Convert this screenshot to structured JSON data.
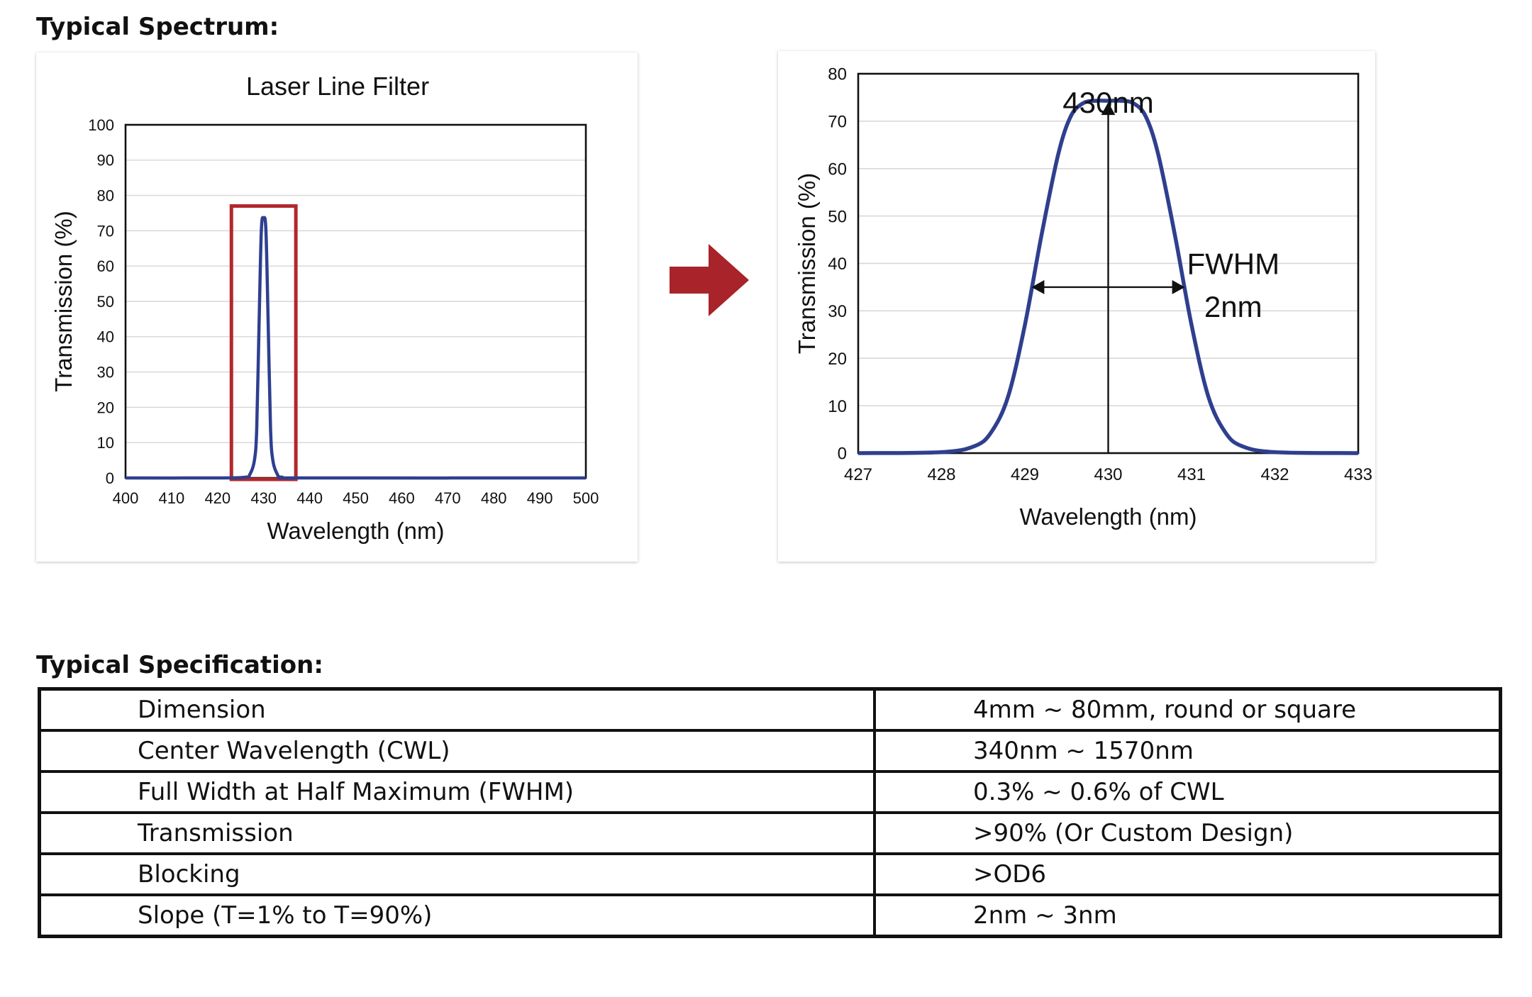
{
  "sections": {
    "spectrum_title": "Typical Spectrum:",
    "spec_title": "Typical Specification:"
  },
  "chart_data": [
    {
      "type": "line",
      "title": "Laser Line Filter",
      "xlabel": "Wavelength (nm)",
      "ylabel": "Transmission (%)",
      "xlim": [
        400,
        500
      ],
      "ylim": [
        0,
        100
      ],
      "xticks": [
        400,
        410,
        420,
        430,
        440,
        450,
        460,
        470,
        480,
        490,
        500
      ],
      "yticks": [
        0,
        10,
        20,
        30,
        40,
        50,
        60,
        70,
        80,
        90,
        100
      ],
      "grid": "horizontal",
      "line_color": "#2f3f8f",
      "highlight_color": "#b1282d",
      "highlight_box": {
        "x": [
          423,
          437
        ],
        "y": [
          0,
          77
        ]
      },
      "series": [
        {
          "x": [
            400,
            420,
            426,
            427,
            428,
            428.5,
            429,
            429.5,
            430,
            430.5,
            431,
            431.5,
            432,
            433,
            434,
            440,
            500
          ],
          "y": [
            0,
            0,
            0.2,
            1,
            5,
            14,
            43,
            70,
            73.5,
            70,
            43,
            14,
            5,
            1,
            0.2,
            0,
            0
          ]
        }
      ]
    },
    {
      "type": "line",
      "title": "",
      "xlabel": "Wavelength (nm)",
      "ylabel": "Transmission (%)",
      "xlim": [
        427,
        433
      ],
      "ylim": [
        0,
        80
      ],
      "xticks": [
        427,
        428,
        429,
        430,
        431,
        432,
        433
      ],
      "yticks": [
        0,
        10,
        20,
        30,
        40,
        50,
        60,
        70,
        80
      ],
      "grid": "horizontal",
      "line_color": "#2f3f8f",
      "annotations": [
        {
          "text": "430nm",
          "x": 430,
          "y": 74
        },
        {
          "text": "FWHM",
          "x": 431.5,
          "y": 40
        },
        {
          "text": "2nm",
          "x": 431.5,
          "y": 31
        }
      ],
      "peak_marker": {
        "x": 430,
        "y_from": 0,
        "y_to": 74
      },
      "fwhm_marker": {
        "x_from": 429.08,
        "x_to": 430.92,
        "y": 35
      },
      "series": [
        {
          "x": [
            427,
            428,
            428.4,
            428.6,
            428.8,
            429,
            429.2,
            429.4,
            429.55,
            429.7,
            429.85,
            430,
            430.15,
            430.3,
            430.45,
            430.6,
            430.8,
            431,
            431.2,
            431.4,
            431.6,
            432,
            433
          ],
          "y": [
            0,
            0.2,
            1.5,
            4.5,
            12,
            27,
            46,
            63,
            71,
            73.8,
            74.3,
            74.3,
            74.3,
            73.8,
            71,
            63,
            46,
            27,
            12,
            4.5,
            1.5,
            0.2,
            0
          ]
        }
      ]
    }
  ],
  "table": {
    "rows": [
      {
        "param": "Dimension",
        "value": "4mm ~ 80mm, round or square"
      },
      {
        "param": "Center Wavelength (CWL)",
        "value": "340nm ~ 1570nm"
      },
      {
        "param": "Full Width at Half Maximum (FWHM)",
        "value": "0.3% ~ 0.6% of CWL"
      },
      {
        "param": "Transmission",
        "value": ">90% (Or Custom Design)"
      },
      {
        "param": "Blocking",
        "value": ">OD6"
      },
      {
        "param": "Slope (T=1% to T=90%)",
        "value": "2nm ~ 3nm"
      }
    ]
  },
  "colors": {
    "arrow": "#a8232a",
    "curve": "#2f3f8f",
    "highlight": "#b1282d"
  }
}
